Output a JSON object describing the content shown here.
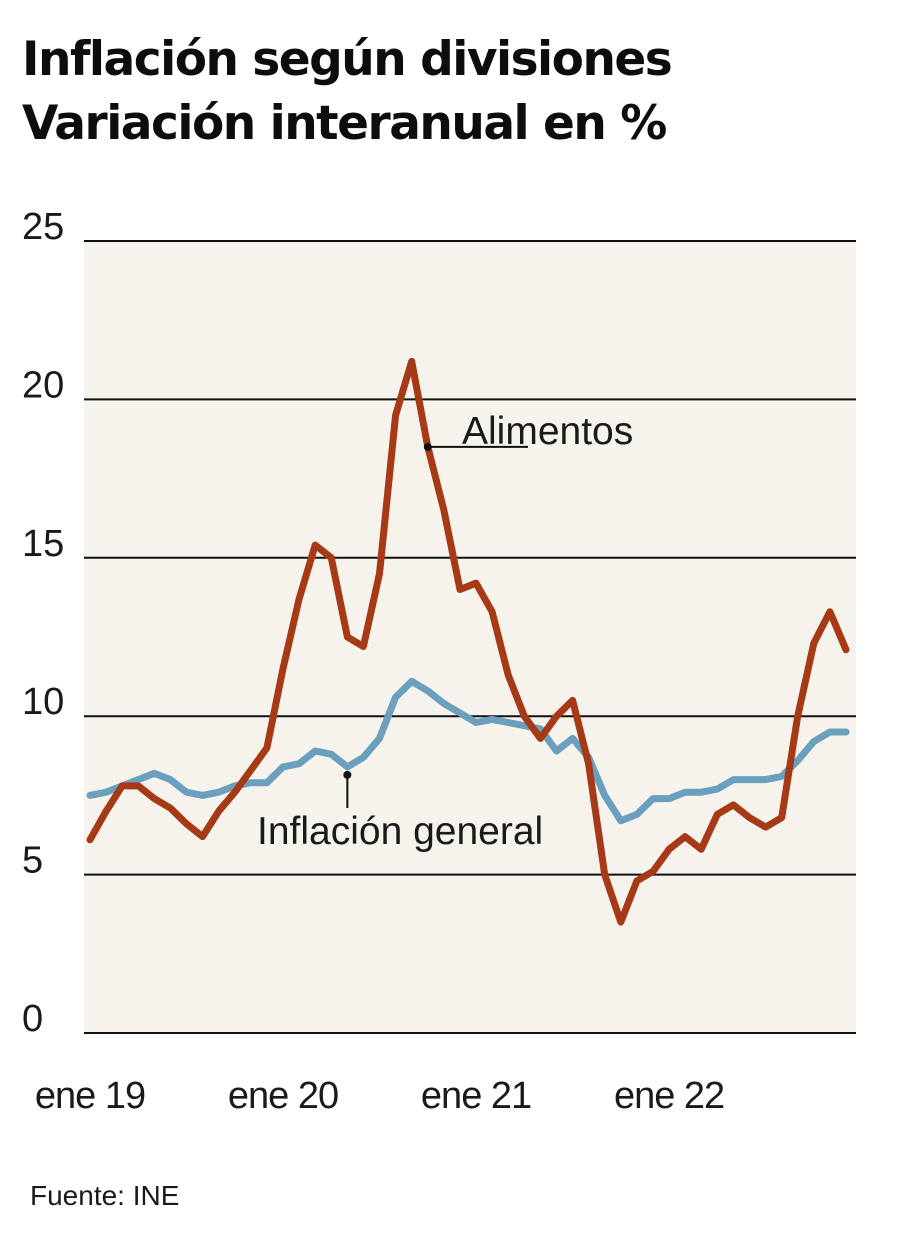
{
  "header": {
    "title": "Inflación según divisiones",
    "subtitle": "Variación interanual en %"
  },
  "source": "Fuente: INE",
  "chart_data": {
    "type": "line",
    "title": "Inflación según divisiones",
    "subtitle": "Variación interanual en %",
    "xlabel": "",
    "ylabel": "",
    "ylim": [
      0,
      25
    ],
    "yticks": [
      0,
      5,
      10,
      15,
      20,
      25
    ],
    "xticks": [
      {
        "label": "ene 19",
        "value": "2019-01"
      },
      {
        "label": "ene 20",
        "value": "2020-01"
      },
      {
        "label": "ene 21",
        "value": "2021-01"
      },
      {
        "label": "ene 22",
        "value": "2022-01"
      }
    ],
    "grid": "horizontal",
    "plot_background": "#f6f3ec",
    "series": [
      {
        "name": "Alimentos",
        "color": "#a63a16",
        "points": [
          [
            "2019-01",
            6.1
          ],
          [
            "2019-02",
            7.0
          ],
          [
            "2019-03",
            7.8
          ],
          [
            "2019-04",
            7.8
          ],
          [
            "2019-05",
            7.4
          ],
          [
            "2019-06",
            7.1
          ],
          [
            "2019-07",
            6.6
          ],
          [
            "2019-08",
            6.2
          ],
          [
            "2019-09",
            7.0
          ],
          [
            "2019-10",
            7.6
          ],
          [
            "2019-11",
            8.3
          ],
          [
            "2019-12",
            9.0
          ],
          [
            "2020-01",
            11.5
          ],
          [
            "2020-02",
            13.7
          ],
          [
            "2020-03",
            15.4
          ],
          [
            "2020-04",
            15.0
          ],
          [
            "2020-05",
            12.5
          ],
          [
            "2020-06",
            12.2
          ],
          [
            "2020-07",
            14.5
          ],
          [
            "2020-08",
            19.5
          ],
          [
            "2020-09",
            21.2
          ],
          [
            "2020-10",
            18.5
          ],
          [
            "2020-11",
            16.5
          ],
          [
            "2020-12",
            14.0
          ],
          [
            "2021-01",
            14.2
          ],
          [
            "2021-02",
            13.3
          ],
          [
            "2021-03",
            11.3
          ],
          [
            "2021-04",
            10.0
          ],
          [
            "2021-05",
            9.3
          ],
          [
            "2021-06",
            10.0
          ],
          [
            "2021-07",
            10.5
          ],
          [
            "2021-08",
            8.5
          ],
          [
            "2021-09",
            5.0
          ],
          [
            "2021-10",
            3.5
          ],
          [
            "2021-11",
            4.8
          ],
          [
            "2021-12",
            5.1
          ],
          [
            "2022-01",
            5.8
          ],
          [
            "2022-02",
            6.2
          ],
          [
            "2022-03",
            5.8
          ],
          [
            "2022-04",
            6.9
          ],
          [
            "2022-05",
            7.2
          ],
          [
            "2022-06",
            6.8
          ],
          [
            "2022-07",
            6.5
          ],
          [
            "2022-08",
            6.8
          ],
          [
            "2022-09",
            10.0
          ],
          [
            "2022-10",
            12.3
          ],
          [
            "2022-11",
            13.3
          ],
          [
            "2022-12",
            12.1
          ]
        ]
      },
      {
        "name": "Inflación general",
        "color": "#6a9fbd",
        "points": [
          [
            "2019-01",
            7.5
          ],
          [
            "2019-02",
            7.6
          ],
          [
            "2019-03",
            7.8
          ],
          [
            "2019-04",
            8.0
          ],
          [
            "2019-05",
            8.2
          ],
          [
            "2019-06",
            8.0
          ],
          [
            "2019-07",
            7.6
          ],
          [
            "2019-08",
            7.5
          ],
          [
            "2019-09",
            7.6
          ],
          [
            "2019-10",
            7.8
          ],
          [
            "2019-11",
            7.9
          ],
          [
            "2019-12",
            7.9
          ],
          [
            "2020-01",
            8.4
          ],
          [
            "2020-02",
            8.5
          ],
          [
            "2020-03",
            8.9
          ],
          [
            "2020-04",
            8.8
          ],
          [
            "2020-05",
            8.4
          ],
          [
            "2020-06",
            8.7
          ],
          [
            "2020-07",
            9.3
          ],
          [
            "2020-08",
            10.6
          ],
          [
            "2020-09",
            11.1
          ],
          [
            "2020-10",
            10.8
          ],
          [
            "2020-11",
            10.4
          ],
          [
            "2020-12",
            10.1
          ],
          [
            "2021-01",
            9.8
          ],
          [
            "2021-02",
            9.9
          ],
          [
            "2021-03",
            9.8
          ],
          [
            "2021-04",
            9.7
          ],
          [
            "2021-05",
            9.6
          ],
          [
            "2021-06",
            8.9
          ],
          [
            "2021-07",
            9.3
          ],
          [
            "2021-08",
            8.7
          ],
          [
            "2021-09",
            7.5
          ],
          [
            "2021-10",
            6.7
          ],
          [
            "2021-11",
            6.9
          ],
          [
            "2021-12",
            7.4
          ],
          [
            "2022-01",
            7.4
          ],
          [
            "2022-02",
            7.6
          ],
          [
            "2022-03",
            7.6
          ],
          [
            "2022-04",
            7.7
          ],
          [
            "2022-05",
            8.0
          ],
          [
            "2022-06",
            8.0
          ],
          [
            "2022-07",
            8.0
          ],
          [
            "2022-08",
            8.1
          ],
          [
            "2022-09",
            8.6
          ],
          [
            "2022-10",
            9.2
          ],
          [
            "2022-11",
            9.5
          ],
          [
            "2022-12",
            9.5
          ]
        ]
      }
    ],
    "annotations": [
      {
        "text": "Alimentos",
        "series": "Alimentos",
        "at": "2020-10"
      },
      {
        "text": "Inflación general",
        "series": "Inflación general",
        "at": "2020-05"
      }
    ]
  }
}
